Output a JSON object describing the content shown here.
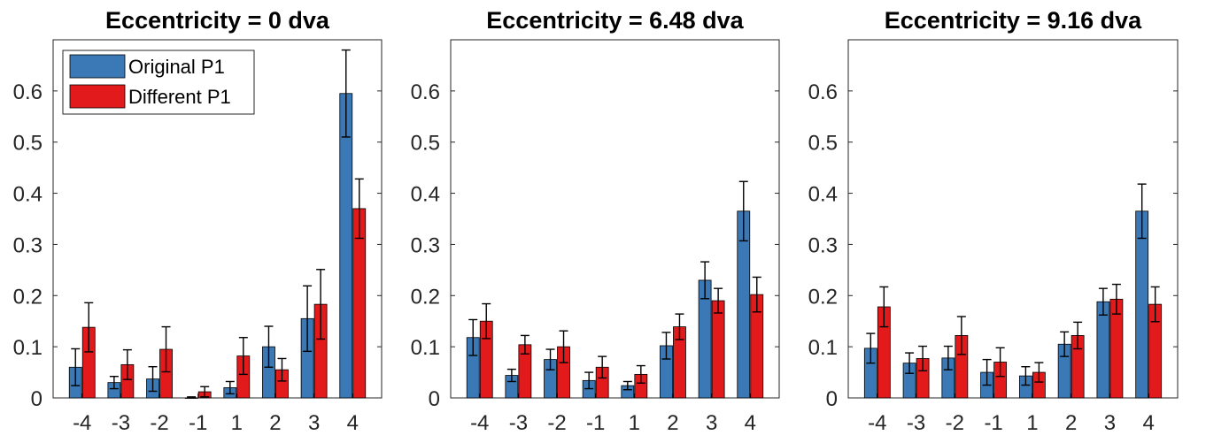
{
  "colors": {
    "original": "#3a78b6",
    "different": "#e31a1c",
    "errorbar": "#000000"
  },
  "legend": {
    "position": "top-left",
    "entries": [
      "Original P1",
      "Different P1"
    ]
  },
  "chart_data": [
    {
      "type": "bar",
      "title": "Eccentricity = 0 dva",
      "categories": [
        "-4",
        "-3",
        "-2",
        "-1",
        "1",
        "2",
        "3",
        "4"
      ],
      "ylim": [
        0,
        0.7
      ],
      "yticks": [
        "0",
        "0.1",
        "0.2",
        "0.3",
        "0.4",
        "0.5",
        "0.6"
      ],
      "series": [
        {
          "name": "Original P1",
          "values": [
            0.06,
            0.03,
            0.037,
            0.0,
            0.02,
            0.1,
            0.155,
            0.595
          ],
          "error": [
            0.036,
            0.012,
            0.024,
            0.002,
            0.012,
            0.04,
            0.064,
            0.085
          ]
        },
        {
          "name": "Different P1",
          "values": [
            0.138,
            0.065,
            0.095,
            0.012,
            0.082,
            0.055,
            0.183,
            0.37
          ],
          "error": [
            0.048,
            0.029,
            0.044,
            0.01,
            0.036,
            0.022,
            0.068,
            0.058
          ]
        }
      ]
    },
    {
      "type": "bar",
      "title": "Eccentricity = 6.48 dva",
      "categories": [
        "-4",
        "-3",
        "-2",
        "-1",
        "1",
        "2",
        "3",
        "4"
      ],
      "ylim": [
        0,
        0.7
      ],
      "yticks": [
        "0",
        "0.1",
        "0.2",
        "0.3",
        "0.4",
        "0.5",
        "0.6"
      ],
      "series": [
        {
          "name": "Original P1",
          "values": [
            0.118,
            0.044,
            0.075,
            0.034,
            0.024,
            0.102,
            0.23,
            0.365
          ],
          "error": [
            0.035,
            0.012,
            0.02,
            0.016,
            0.008,
            0.026,
            0.036,
            0.058
          ]
        },
        {
          "name": "Different P1",
          "values": [
            0.15,
            0.104,
            0.1,
            0.06,
            0.046,
            0.139,
            0.19,
            0.202
          ],
          "error": [
            0.034,
            0.018,
            0.031,
            0.021,
            0.017,
            0.025,
            0.024,
            0.034
          ]
        }
      ]
    },
    {
      "type": "bar",
      "title": "Eccentricity = 9.16 dva",
      "categories": [
        "-4",
        "-3",
        "-2",
        "-1",
        "1",
        "2",
        "3",
        "4"
      ],
      "ylim": [
        0,
        0.7
      ],
      "yticks": [
        "0",
        "0.1",
        "0.2",
        "0.3",
        "0.4",
        "0.5",
        "0.6"
      ],
      "series": [
        {
          "name": "Original P1",
          "values": [
            0.097,
            0.068,
            0.078,
            0.05,
            0.043,
            0.105,
            0.188,
            0.365
          ],
          "error": [
            0.029,
            0.02,
            0.023,
            0.025,
            0.018,
            0.024,
            0.026,
            0.053
          ]
        },
        {
          "name": "Different P1",
          "values": [
            0.178,
            0.077,
            0.122,
            0.07,
            0.05,
            0.122,
            0.193,
            0.183
          ],
          "error": [
            0.039,
            0.024,
            0.037,
            0.028,
            0.019,
            0.026,
            0.029,
            0.034
          ]
        }
      ]
    }
  ]
}
